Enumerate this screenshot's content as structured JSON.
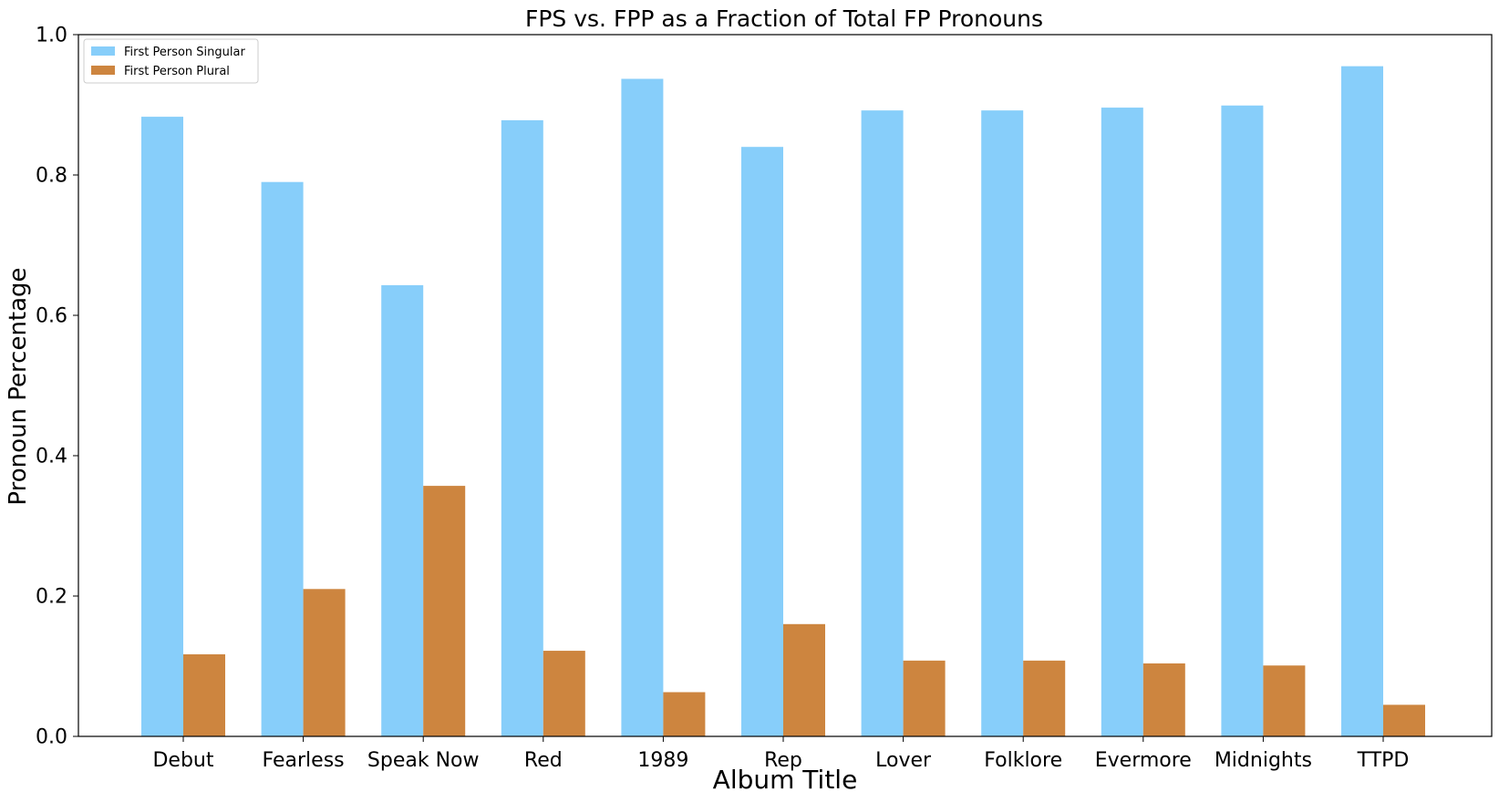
{
  "chart_data": {
    "type": "bar",
    "title": "FPS vs. FPP as a Fraction of Total FP Pronouns",
    "xlabel": "Album Title",
    "ylabel": "Pronoun Percentage",
    "ylim": [
      0,
      1.0
    ],
    "yticks": [
      "0.0",
      "0.2",
      "0.4",
      "0.6",
      "0.8",
      "1.0"
    ],
    "grid": false,
    "legend_position": "top-left",
    "categories": [
      "Debut",
      "Fearless",
      "Speak Now",
      "Red",
      "1989",
      "Rep",
      "Lover",
      "Folklore",
      "Evermore",
      "Midnights",
      "TTPD"
    ],
    "series": [
      {
        "name": "First Person Singular",
        "color": "#87cefa",
        "values": [
          0.883,
          0.79,
          0.643,
          0.878,
          0.937,
          0.84,
          0.892,
          0.892,
          0.896,
          0.899,
          0.955
        ]
      },
      {
        "name": "First Person Plural",
        "color": "#cd853f",
        "values": [
          0.117,
          0.21,
          0.357,
          0.122,
          0.063,
          0.16,
          0.108,
          0.108,
          0.104,
          0.101,
          0.045
        ]
      }
    ]
  }
}
